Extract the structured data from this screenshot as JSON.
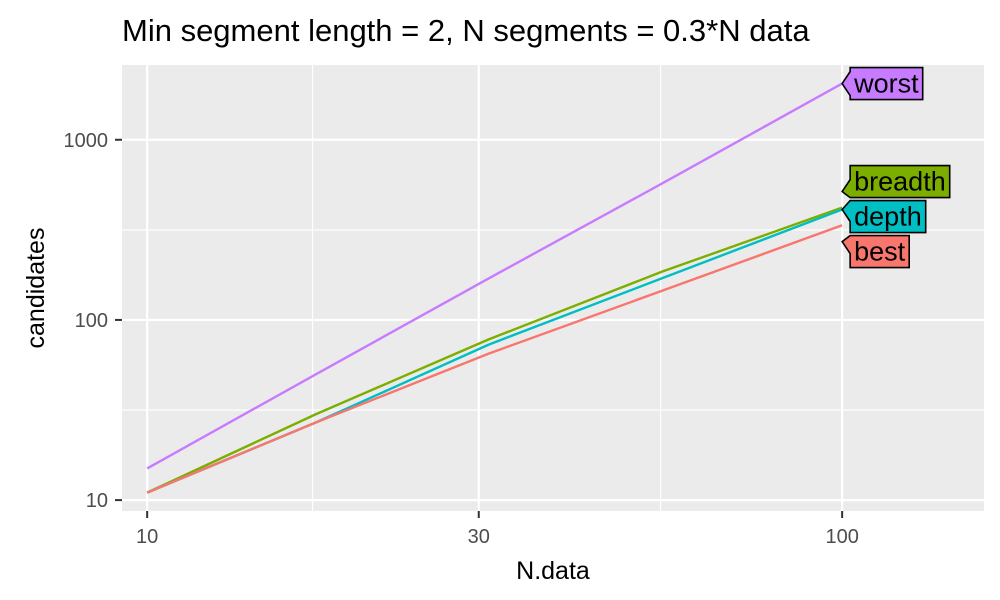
{
  "chart_data": {
    "type": "line",
    "title": "Min segment length = 2, N segments = 0.3*N data",
    "xlabel": "N.data",
    "ylabel": "candidates",
    "x_scale": "log10",
    "y_scale": "log10",
    "xlim": [
      9.2,
      160
    ],
    "ylim": [
      8.7,
      2600
    ],
    "x_ticks": [
      {
        "value": 10,
        "label": "10"
      },
      {
        "value": 30,
        "label": "30"
      },
      {
        "value": 100,
        "label": "100"
      }
    ],
    "y_ticks": [
      {
        "value": 10,
        "label": "10"
      },
      {
        "value": 100,
        "label": "100"
      },
      {
        "value": 1000,
        "label": "1000"
      }
    ],
    "x_minor_gridlines": [
      17.3,
      54.8
    ],
    "y_minor_gridlines": [
      31.6,
      316
    ],
    "grid": true,
    "legend": "direct labels at line ends",
    "x": [
      10,
      17.5,
      31,
      55,
      100
    ],
    "series": [
      {
        "name": "worst",
        "color": "#C77CFF",
        "values": [
          15,
          50,
          170,
          570,
          2050
        ]
      },
      {
        "name": "breadth",
        "color": "#7CAE00",
        "values": [
          11,
          30,
          78,
          185,
          420
        ]
      },
      {
        "name": "depth",
        "color": "#00BFC4",
        "values": [
          11,
          27,
          73,
          170,
          410
        ]
      },
      {
        "name": "best",
        "color": "#F8766D",
        "values": [
          11,
          27,
          65,
          145,
          335
        ]
      }
    ],
    "label_order": [
      "worst",
      "breadth",
      "depth",
      "best"
    ]
  },
  "style": {
    "panel_background": "#EBEBEB",
    "grid_color": "#FFFFFF",
    "tick_color": "#333333",
    "tick_label_color": "#4D4D4D"
  }
}
